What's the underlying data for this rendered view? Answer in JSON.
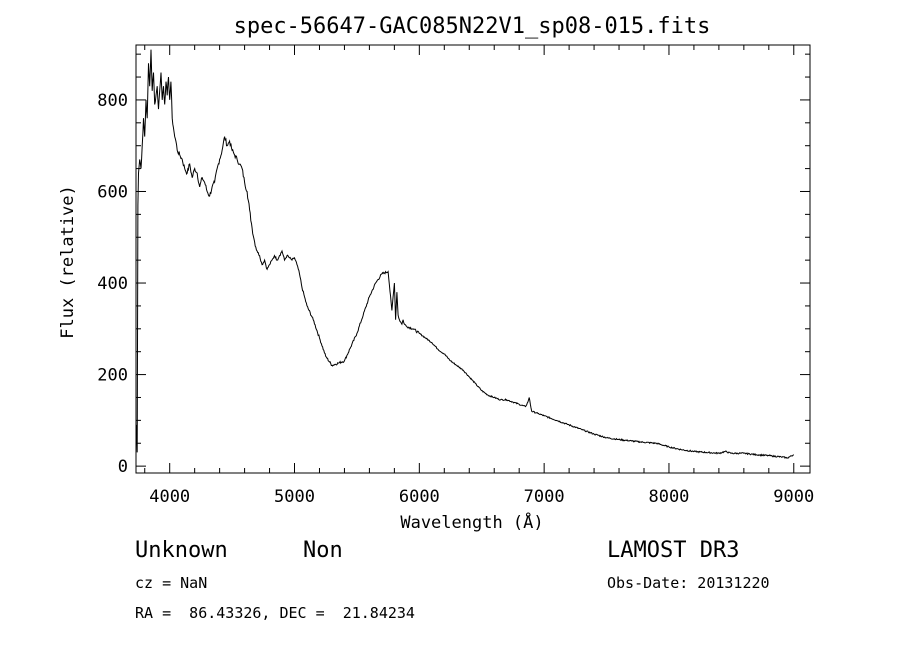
{
  "chart_data": {
    "type": "line",
    "title": "spec-56647-GAC085N22V1_sp08-015.fits",
    "xlabel": "Wavelength (Å)",
    "ylabel": "Flux (relative)",
    "xlim": [
      3730,
      9130
    ],
    "ylim": [
      -15,
      920
    ],
    "x_ticks": [
      4000,
      5000,
      6000,
      7000,
      8000,
      9000
    ],
    "y_ticks": [
      0,
      200,
      400,
      600,
      800
    ],
    "grid": false,
    "series": [
      {
        "x": [
          3735,
          3740,
          3745,
          3750,
          3760,
          3770,
          3780,
          3790,
          3800,
          3810,
          3820,
          3830,
          3840,
          3850,
          3860,
          3870,
          3880,
          3890,
          3900,
          3910,
          3920,
          3930,
          3940,
          3950,
          3960,
          3970,
          3980,
          3990,
          4000,
          4010,
          4020,
          4030,
          4040,
          4050,
          4060,
          4080,
          4100,
          4120,
          4140,
          4160,
          4180,
          4200,
          4220,
          4240,
          4260,
          4280,
          4300,
          4320,
          4340,
          4360,
          4380,
          4400,
          4420,
          4440,
          4460,
          4480,
          4500,
          4520,
          4540,
          4560,
          4580,
          4600,
          4620,
          4640,
          4660,
          4680,
          4700,
          4720,
          4740,
          4760,
          4780,
          4800,
          4820,
          4840,
          4860,
          4880,
          4900,
          4920,
          4940,
          4960,
          4980,
          5000,
          5020,
          5040,
          5060,
          5080,
          5100,
          5150,
          5200,
          5250,
          5300,
          5350,
          5400,
          5450,
          5500,
          5550,
          5600,
          5650,
          5700,
          5750,
          5780,
          5800,
          5810,
          5820,
          5830,
          5840,
          5850,
          5860,
          5870,
          5880,
          5900,
          5950,
          6000,
          6050,
          6100,
          6150,
          6200,
          6250,
          6300,
          6350,
          6400,
          6450,
          6500,
          6550,
          6600,
          6650,
          6700,
          6750,
          6800,
          6850,
          6870,
          6880,
          6900,
          6950,
          7000,
          7100,
          7200,
          7300,
          7400,
          7500,
          7600,
          7700,
          7800,
          7900,
          8000,
          8100,
          8200,
          8300,
          8400,
          8450,
          8500,
          8600,
          8700,
          8800,
          8900,
          8950,
          9000
        ],
        "y": [
          90,
          30,
          570,
          640,
          670,
          650,
          700,
          760,
          720,
          800,
          760,
          880,
          830,
          910,
          820,
          860,
          790,
          810,
          830,
          780,
          820,
          860,
          800,
          830,
          790,
          840,
          810,
          850,
          800,
          840,
          760,
          740,
          720,
          710,
          690,
          680,
          670,
          650,
          640,
          660,
          630,
          650,
          640,
          610,
          630,
          620,
          600,
          590,
          610,
          620,
          650,
          670,
          690,
          720,
          700,
          710,
          690,
          680,
          670,
          660,
          650,
          620,
          600,
          560,
          520,
          490,
          470,
          460,
          440,
          450,
          430,
          440,
          450,
          460,
          450,
          460,
          470,
          450,
          460,
          455,
          450,
          455,
          440,
          420,
          390,
          370,
          350,
          320,
          280,
          240,
          220,
          225,
          230,
          260,
          290,
          330,
          370,
          400,
          420,
          425,
          340,
          400,
          320,
          380,
          330,
          320,
          315,
          310,
          320,
          310,
          305,
          300,
          290,
          280,
          270,
          255,
          245,
          230,
          220,
          210,
          195,
          180,
          165,
          155,
          150,
          145,
          145,
          140,
          135,
          130,
          140,
          150,
          120,
          115,
          110,
          100,
          90,
          80,
          70,
          62,
          58,
          55,
          52,
          50,
          42,
          36,
          32,
          30,
          28,
          32,
          28,
          28,
          25,
          23,
          20,
          18,
          25
        ]
      }
    ]
  },
  "info": {
    "object_class": "Unknown",
    "object_subclass": "Non",
    "survey": "LAMOST DR3",
    "redshift": "cz = NaN",
    "obs_date": "Obs-Date: 20131220",
    "coords": "RA =  86.43326, DEC =  21.84234"
  }
}
